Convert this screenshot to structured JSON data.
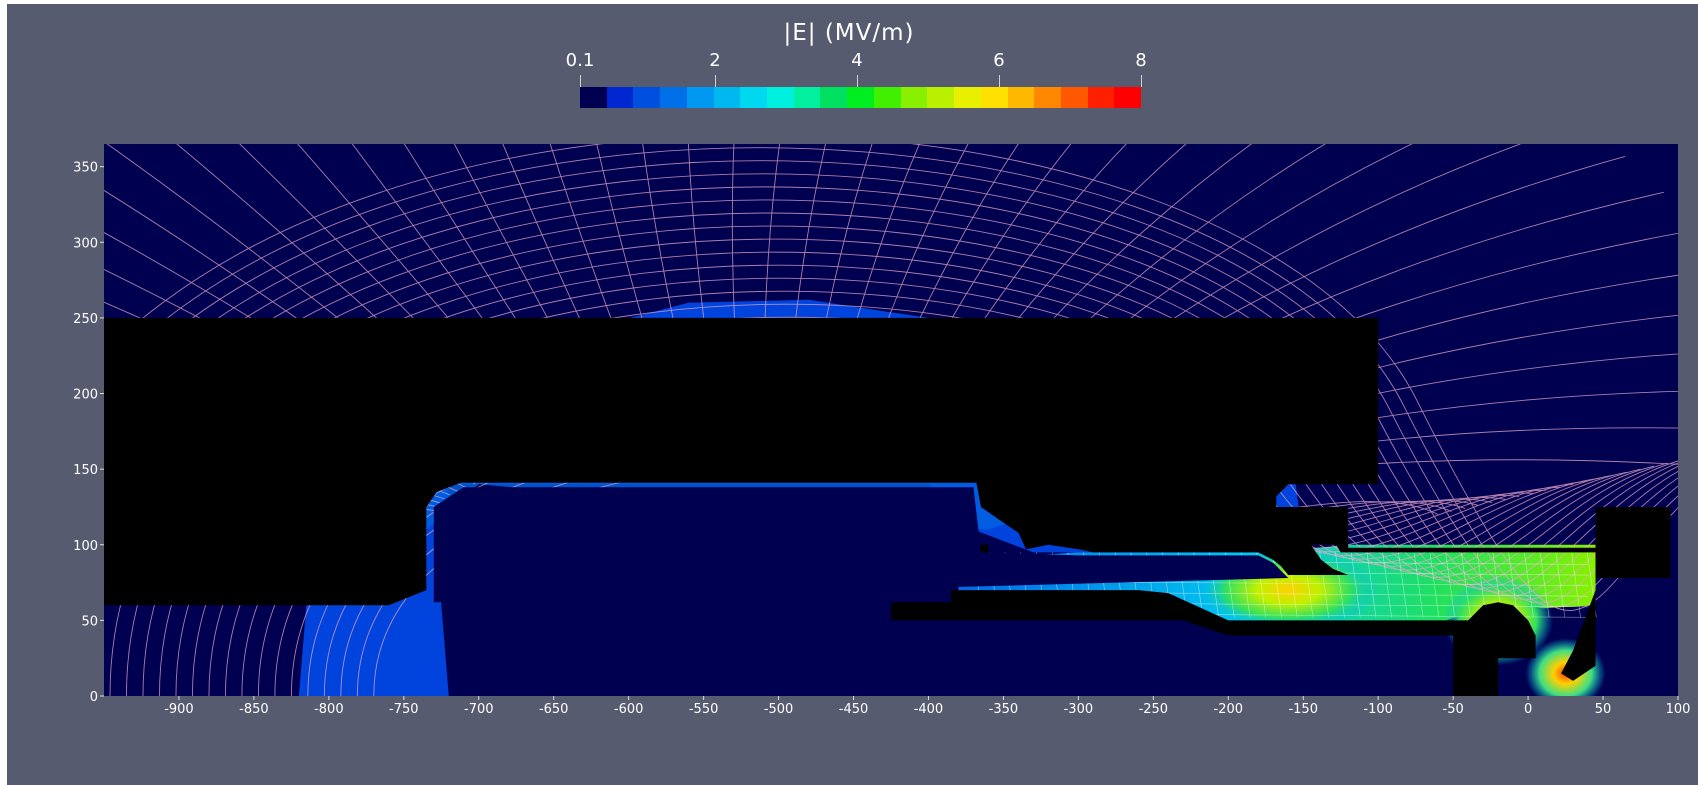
{
  "chart_data": {
    "type": "heatmap",
    "title": "",
    "colorbar": {
      "label": "|E| (MV/m)",
      "min": 0.1,
      "max": 8,
      "ticks": [
        "0.1",
        "2",
        "4",
        "6",
        "8"
      ],
      "tick_values": [
        0.1,
        2,
        4,
        6,
        8
      ],
      "colors": [
        "#000050",
        "#0028d0",
        "#0050e0",
        "#0070e8",
        "#0098f0",
        "#00b8f0",
        "#00d8f0",
        "#00f0e0",
        "#00f0a0",
        "#00e060",
        "#00ee20",
        "#40f000",
        "#88f000",
        "#b8f000",
        "#e8f000",
        "#ffe000",
        "#ffb800",
        "#ff8800",
        "#ff5800",
        "#ff2000",
        "#ff0000"
      ]
    },
    "x_ticks": [
      "-900",
      "-850",
      "-800",
      "-750",
      "-700",
      "-650",
      "-600",
      "-550",
      "-500",
      "-450",
      "-400",
      "-350",
      "-300",
      "-250",
      "-200",
      "-150",
      "-100",
      "-50",
      "0",
      "50",
      "100"
    ],
    "y_ticks": [
      "0",
      "50",
      "100",
      "150",
      "200",
      "250",
      "300",
      "350"
    ],
    "xlim": [
      -950,
      100
    ],
    "ylim": [
      0,
      365
    ],
    "background_color": "#000050",
    "frame_color": "#575b70",
    "field_line_color": "#e8a8c8",
    "conductors": [
      {
        "name": "electrode",
        "outline": [
          [
            -735,
            70
          ],
          [
            -735,
            125
          ],
          [
            -728,
            135
          ],
          [
            -712,
            141
          ],
          [
            -690,
            141
          ],
          [
            -368,
            141
          ],
          [
            -365,
            125
          ],
          [
            -352,
            116
          ],
          [
            -340,
            108
          ],
          [
            -335,
            97
          ],
          [
            -320,
            100
          ],
          [
            -300,
            97
          ],
          [
            -290,
            95
          ],
          [
            -260,
            95
          ],
          [
            -180,
            95
          ],
          [
            -170,
            90
          ],
          [
            -165,
            86
          ],
          [
            -160,
            80
          ],
          [
            -140,
            80
          ],
          [
            -130,
            80
          ],
          [
            -120,
            80
          ],
          [
            -130,
            84
          ],
          [
            -138,
            90
          ],
          [
            -145,
            100
          ],
          [
            -160,
            108
          ],
          [
            -168,
            118
          ],
          [
            -168,
            132
          ],
          [
            -160,
            140
          ],
          [
            -150,
            140
          ],
          [
            -100,
            140
          ],
          [
            -100,
            250
          ],
          [
            -1000,
            250
          ],
          [
            -1000,
            60
          ],
          [
            -760,
            60
          ]
        ]
      },
      {
        "name": "ground-left",
        "outline": [
          [
            -425,
            125
          ],
          [
            -375,
            125
          ],
          [
            -375,
            100
          ],
          [
            -360,
            100
          ],
          [
            -360,
            90
          ],
          [
            -400,
            90
          ],
          [
            -400,
            85
          ],
          [
            -385,
            85
          ],
          [
            -385,
            70
          ],
          [
            -260,
            70
          ],
          [
            -240,
            68
          ],
          [
            -200,
            50
          ],
          [
            -40,
            50
          ],
          [
            -30,
            60
          ],
          [
            -20,
            62
          ],
          [
            -10,
            60
          ],
          [
            0,
            50
          ],
          [
            5,
            40
          ],
          [
            5,
            25
          ],
          [
            -20,
            25
          ],
          [
            -20,
            0
          ],
          [
            -50,
            0
          ],
          [
            -50,
            40
          ],
          [
            -200,
            40
          ],
          [
            -230,
            50
          ],
          [
            -425,
            50
          ]
        ]
      },
      {
        "name": "ground-right",
        "outline": [
          [
            45,
            125
          ],
          [
            95,
            125
          ],
          [
            95,
            78
          ],
          [
            45,
            78
          ],
          [
            45,
            70
          ],
          [
            30,
            30
          ],
          [
            22,
            15
          ],
          [
            30,
            10
          ],
          [
            45,
            20
          ],
          [
            45,
            95
          ],
          [
            -125,
            95
          ],
          [
            -128,
            100
          ],
          [
            -170,
            100
          ],
          [
            -175,
            125
          ],
          [
            -120,
            125
          ],
          [
            -120,
            98
          ],
          [
            45,
            98
          ]
        ]
      }
    ],
    "field_description": "Axisymmetric electrostatic field magnitude |E| with equipotential and field lines"
  }
}
